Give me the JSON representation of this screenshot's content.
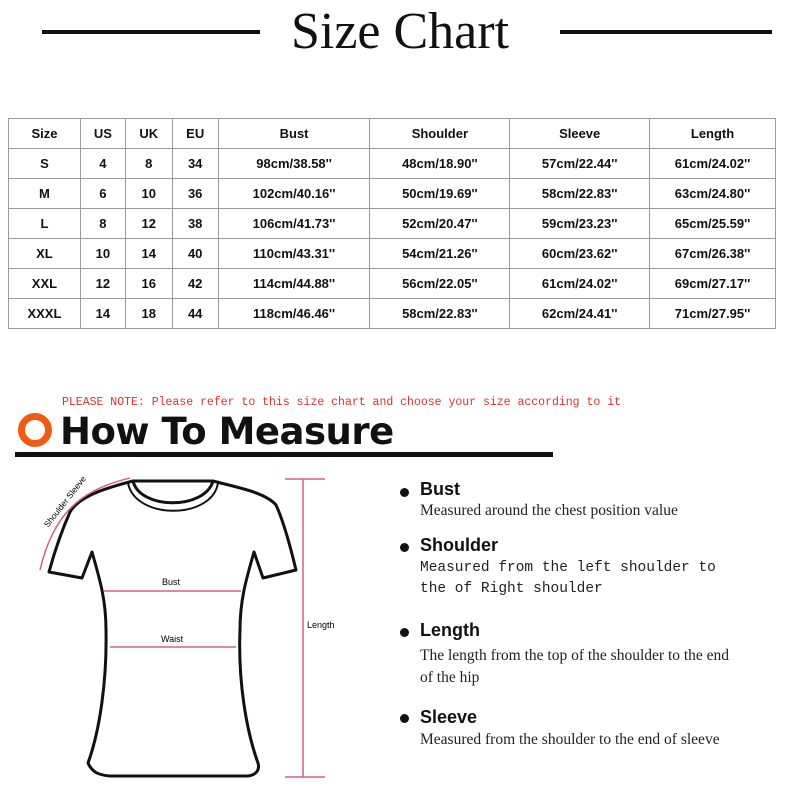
{
  "title": "Size Chart",
  "table": {
    "headers": [
      "Size",
      "US",
      "UK",
      "EU",
      "Bust",
      "Shoulder",
      "Sleeve",
      "Length"
    ],
    "rows": [
      [
        "S",
        "4",
        "8",
        "34",
        "98cm/38.58''",
        "48cm/18.90''",
        "57cm/22.44''",
        "61cm/24.02''"
      ],
      [
        "M",
        "6",
        "10",
        "36",
        "102cm/40.16''",
        "50cm/19.69''",
        "58cm/22.83''",
        "63cm/24.80''"
      ],
      [
        "L",
        "8",
        "12",
        "38",
        "106cm/41.73''",
        "52cm/20.47''",
        "59cm/23.23''",
        "65cm/25.59''"
      ],
      [
        "XL",
        "10",
        "14",
        "40",
        "110cm/43.31''",
        "54cm/21.26''",
        "60cm/23.62''",
        "67cm/26.38''"
      ],
      [
        "XXL",
        "12",
        "16",
        "42",
        "114cm/44.88''",
        "56cm/22.05''",
        "61cm/24.02''",
        "69cm/27.17''"
      ],
      [
        "XXXL",
        "14",
        "18",
        "44",
        "118cm/46.46''",
        "58cm/22.83''",
        "62cm/24.41''",
        "71cm/27.95''"
      ]
    ]
  },
  "note": "PLEASE NOTE: Please refer to this size chart and choose your size according to it",
  "how_to_measure": "How To Measure",
  "diagram_labels": {
    "shoulder_sleeve": "Shoulder Sleeve",
    "bust": "Bust",
    "waist": "Waist",
    "length": "Length"
  },
  "measures": [
    {
      "title": "Bust",
      "desc": "Measured around the chest position value"
    },
    {
      "title": "Shoulder",
      "desc": "Measured from the left shoulder to the of Right shoulder"
    },
    {
      "title": "Length",
      "desc": "The length from the top of the shoulder to the end of the hip"
    },
    {
      "title": "Sleeve",
      "desc": "Measured from the shoulder to the end of sleeve"
    }
  ],
  "colors": {
    "note": "#e0302a",
    "accent_ring": "#f05a14",
    "measure_lines": "#d4608a"
  }
}
